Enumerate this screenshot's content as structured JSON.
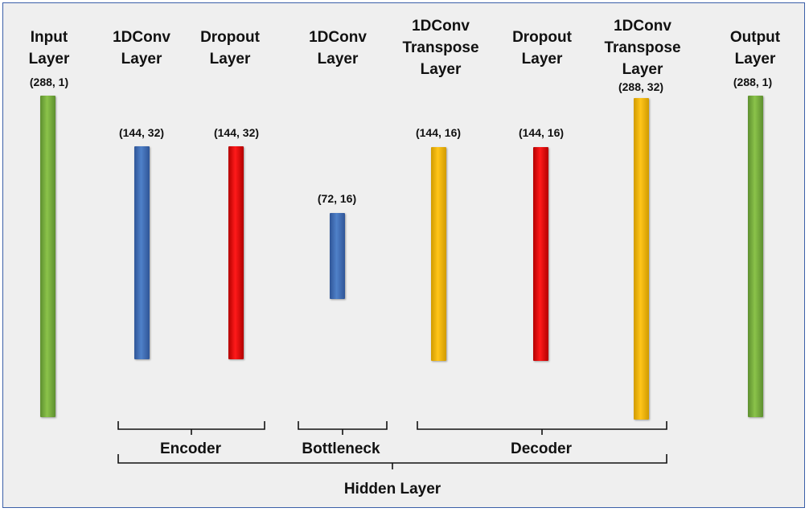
{
  "layers": {
    "input": {
      "title": "Input\nLayer",
      "shape": "(288, 1)",
      "color": "#70ad47"
    },
    "conv1": {
      "title": "1DConv\nLayer",
      "shape": "(144, 32)",
      "color": "#4472c4"
    },
    "drop1": {
      "title": "Dropout\nLayer",
      "shape": "(144, 32)",
      "color": "#ff0000"
    },
    "conv2": {
      "title": "1DConv\nLayer",
      "shape": "(72, 16)",
      "color": "#4472c4"
    },
    "tconv1": {
      "title": "1DConv\nTranspose\nLayer",
      "shape": "(144, 16)",
      "color": "#ffc000"
    },
    "drop2": {
      "title": "Dropout\nLayer",
      "shape": "(144, 16)",
      "color": "#ff0000"
    },
    "tconv2": {
      "title": "1DConv\nTranspose\nLayer",
      "shape": "(288, 32)",
      "color": "#ffc000"
    },
    "output": {
      "title": "Output\nLayer",
      "shape": "(288, 1)",
      "color": "#70ad47"
    }
  },
  "groups": {
    "encoder": "Encoder",
    "bottleneck": "Bottleneck",
    "decoder": "Decoder",
    "hidden": "Hidden Layer"
  }
}
